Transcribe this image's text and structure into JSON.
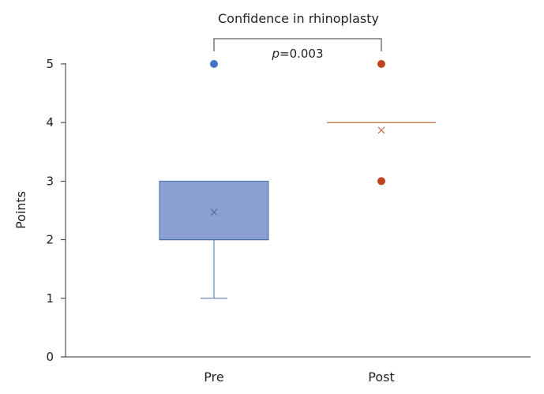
{
  "chart_data": {
    "type": "box",
    "title": "Confidence in rhinoplasty",
    "ylabel": "Points",
    "xlabel": "",
    "ylim": [
      0,
      5
    ],
    "yticks": [
      0,
      1,
      2,
      3,
      4,
      5
    ],
    "categories": [
      "Pre",
      "Post"
    ],
    "annotation": {
      "prefix": "p",
      "text": "=0.003",
      "between": [
        "Pre",
        "Post"
      ]
    },
    "series": [
      {
        "category": "Pre",
        "color": "#8b9fd1",
        "edge_color": "#4a6fa5",
        "whisker_low": 1,
        "q1": 2,
        "median": 2,
        "q3": 3,
        "whisker_high": 3,
        "mean": 2.47,
        "outliers": [
          5
        ],
        "outlier_color": "#4472c4"
      },
      {
        "category": "Post",
        "color": "#c55a2b",
        "edge_color": "#c55a2b",
        "whisker_low": 4,
        "q1": 4,
        "median": 4,
        "q3": 4,
        "whisker_high": 4,
        "mean": 3.87,
        "outliers": [
          3,
          5
        ],
        "outlier_color": "#c0441f"
      }
    ]
  }
}
